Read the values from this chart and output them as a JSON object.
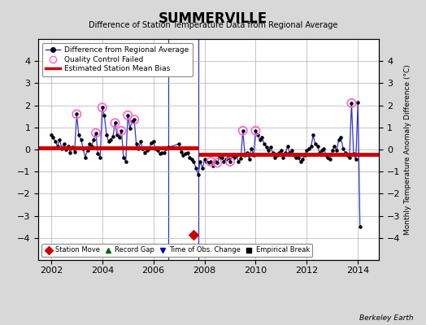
{
  "title": "SUMMERVILLE",
  "subtitle": "Difference of Station Temperature Data from Regional Average",
  "ylabel_right": "Monthly Temperature Anomaly Difference (°C)",
  "credit": "Berkeley Earth",
  "xlim": [
    2001.5,
    2014.83
  ],
  "ylim": [
    -5,
    5
  ],
  "yticks": [
    -4,
    -3,
    -2,
    -1,
    0,
    1,
    2,
    3,
    4
  ],
  "xticks": [
    2002,
    2004,
    2006,
    2008,
    2010,
    2012,
    2014
  ],
  "background_color": "#d8d8d8",
  "plot_bg_color": "#ffffff",
  "grid_color": "#b0b0b0",
  "line_color": "#3333cc",
  "marker_color": "#000000",
  "bias_color": "#cc0000",
  "qc_color": "#ff66cc",
  "station_move_color": "#cc0000",
  "record_gap_color": "#006600",
  "obs_change_color": "#0000cc",
  "empirical_break_color": "#000000",
  "segment1_start": 2001.5,
  "segment1_end": 2007.75,
  "segment1_bias": 0.08,
  "segment2_start": 2007.75,
  "segment2_end": 2014.83,
  "segment2_bias": -0.22,
  "vertical_line_x": 2006.58,
  "vertical_line2_x": 2007.75,
  "station_move_x": 2007.58,
  "station_move_y": -3.85,
  "qc_fail_points": [
    [
      2003.0,
      1.6
    ],
    [
      2003.75,
      0.75
    ],
    [
      2004.0,
      1.9
    ],
    [
      2004.5,
      1.2
    ],
    [
      2004.75,
      0.85
    ],
    [
      2005.0,
      1.55
    ],
    [
      2005.25,
      1.35
    ],
    [
      2008.25,
      -0.55
    ],
    [
      2008.5,
      -0.6
    ],
    [
      2009.0,
      -0.55
    ],
    [
      2009.5,
      0.85
    ],
    [
      2010.0,
      0.85
    ],
    [
      2013.75,
      2.1
    ]
  ],
  "main_data": [
    [
      2002.0,
      0.65
    ],
    [
      2002.08,
      0.55
    ],
    [
      2002.17,
      0.35
    ],
    [
      2002.25,
      0.15
    ],
    [
      2002.33,
      0.45
    ],
    [
      2002.42,
      0.05
    ],
    [
      2002.5,
      0.25
    ],
    [
      2002.58,
      0.0
    ],
    [
      2002.67,
      0.15
    ],
    [
      2002.75,
      -0.15
    ],
    [
      2002.83,
      0.1
    ],
    [
      2002.92,
      -0.1
    ],
    [
      2003.0,
      1.6
    ],
    [
      2003.08,
      0.65
    ],
    [
      2003.17,
      0.45
    ],
    [
      2003.25,
      0.05
    ],
    [
      2003.33,
      -0.35
    ],
    [
      2003.42,
      -0.05
    ],
    [
      2003.5,
      0.25
    ],
    [
      2003.58,
      0.15
    ],
    [
      2003.67,
      0.45
    ],
    [
      2003.75,
      0.75
    ],
    [
      2003.83,
      -0.2
    ],
    [
      2003.92,
      -0.35
    ],
    [
      2004.0,
      1.9
    ],
    [
      2004.08,
      1.55
    ],
    [
      2004.17,
      0.65
    ],
    [
      2004.25,
      0.35
    ],
    [
      2004.33,
      0.45
    ],
    [
      2004.42,
      0.6
    ],
    [
      2004.5,
      1.2
    ],
    [
      2004.58,
      0.65
    ],
    [
      2004.67,
      0.55
    ],
    [
      2004.75,
      0.85
    ],
    [
      2004.83,
      -0.35
    ],
    [
      2004.92,
      -0.55
    ],
    [
      2005.0,
      1.55
    ],
    [
      2005.08,
      0.95
    ],
    [
      2005.17,
      1.3
    ],
    [
      2005.25,
      1.35
    ],
    [
      2005.33,
      0.25
    ],
    [
      2005.42,
      0.05
    ],
    [
      2005.5,
      0.35
    ],
    [
      2005.58,
      0.05
    ],
    [
      2005.67,
      -0.15
    ],
    [
      2005.75,
      -0.05
    ],
    [
      2005.83,
      0.05
    ],
    [
      2005.92,
      0.3
    ],
    [
      2006.0,
      0.35
    ],
    [
      2006.08,
      0.05
    ],
    [
      2006.17,
      -0.05
    ],
    [
      2006.25,
      -0.2
    ],
    [
      2006.33,
      -0.15
    ],
    [
      2006.42,
      -0.15
    ],
    [
      2006.5,
      0.05
    ],
    [
      2006.58,
      0.1
    ],
    [
      2007.0,
      0.25
    ],
    [
      2007.08,
      -0.1
    ],
    [
      2007.17,
      -0.25
    ],
    [
      2007.25,
      -0.2
    ],
    [
      2007.33,
      -0.15
    ],
    [
      2007.42,
      -0.35
    ],
    [
      2007.5,
      -0.45
    ],
    [
      2007.58,
      -0.55
    ],
    [
      2007.67,
      -0.85
    ],
    [
      2007.75,
      -1.15
    ],
    [
      2007.83,
      -0.55
    ],
    [
      2007.92,
      -0.85
    ],
    [
      2008.0,
      -0.45
    ],
    [
      2008.08,
      -0.55
    ],
    [
      2008.17,
      -0.6
    ],
    [
      2008.25,
      -0.55
    ],
    [
      2008.33,
      -0.75
    ],
    [
      2008.42,
      -0.55
    ],
    [
      2008.5,
      -0.6
    ],
    [
      2008.58,
      -0.35
    ],
    [
      2008.67,
      -0.35
    ],
    [
      2008.75,
      -0.55
    ],
    [
      2008.83,
      -0.45
    ],
    [
      2008.92,
      -0.35
    ],
    [
      2009.0,
      -0.55
    ],
    [
      2009.08,
      -0.3
    ],
    [
      2009.17,
      -0.35
    ],
    [
      2009.25,
      -0.25
    ],
    [
      2009.33,
      -0.55
    ],
    [
      2009.42,
      -0.4
    ],
    [
      2009.5,
      0.85
    ],
    [
      2009.58,
      -0.25
    ],
    [
      2009.67,
      -0.15
    ],
    [
      2009.75,
      -0.45
    ],
    [
      2009.83,
      0.05
    ],
    [
      2009.92,
      -0.25
    ],
    [
      2010.0,
      0.85
    ],
    [
      2010.08,
      0.65
    ],
    [
      2010.17,
      0.45
    ],
    [
      2010.25,
      0.55
    ],
    [
      2010.33,
      0.25
    ],
    [
      2010.42,
      0.1
    ],
    [
      2010.5,
      -0.05
    ],
    [
      2010.58,
      0.1
    ],
    [
      2010.67,
      -0.15
    ],
    [
      2010.75,
      -0.35
    ],
    [
      2010.83,
      -0.25
    ],
    [
      2010.92,
      -0.15
    ],
    [
      2011.0,
      -0.05
    ],
    [
      2011.08,
      -0.35
    ],
    [
      2011.17,
      -0.15
    ],
    [
      2011.25,
      0.15
    ],
    [
      2011.33,
      -0.15
    ],
    [
      2011.42,
      -0.05
    ],
    [
      2011.5,
      -0.25
    ],
    [
      2011.58,
      -0.35
    ],
    [
      2011.67,
      -0.35
    ],
    [
      2011.75,
      -0.55
    ],
    [
      2011.83,
      -0.45
    ],
    [
      2011.92,
      -0.25
    ],
    [
      2012.0,
      -0.05
    ],
    [
      2012.08,
      0.05
    ],
    [
      2012.17,
      0.15
    ],
    [
      2012.25,
      0.65
    ],
    [
      2012.33,
      0.25
    ],
    [
      2012.42,
      0.15
    ],
    [
      2012.5,
      -0.15
    ],
    [
      2012.58,
      -0.05
    ],
    [
      2012.67,
      0.05
    ],
    [
      2012.75,
      -0.25
    ],
    [
      2012.83,
      -0.35
    ],
    [
      2012.92,
      -0.45
    ],
    [
      2013.0,
      -0.05
    ],
    [
      2013.08,
      0.15
    ],
    [
      2013.17,
      -0.05
    ],
    [
      2013.25,
      0.45
    ],
    [
      2013.33,
      0.55
    ],
    [
      2013.42,
      0.05
    ],
    [
      2013.5,
      -0.15
    ],
    [
      2013.58,
      -0.25
    ],
    [
      2013.67,
      -0.35
    ],
    [
      2013.75,
      2.1
    ],
    [
      2013.83,
      -0.2
    ],
    [
      2013.92,
      -0.45
    ],
    [
      2014.0,
      2.15
    ],
    [
      2014.08,
      -3.5
    ]
  ]
}
